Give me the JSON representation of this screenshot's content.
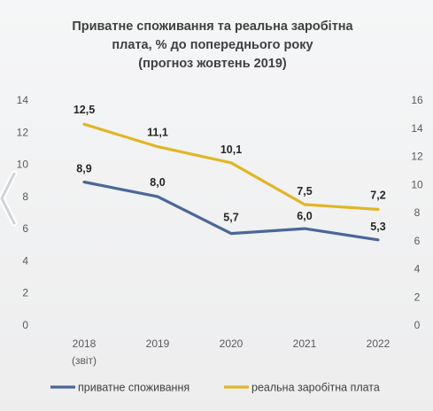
{
  "title_lines": [
    "Приватне споживання та реальна заробітна",
    "плата, % до попереднього року",
    "(прогноз жовтень 2019)"
  ],
  "nav": {
    "icon": "chevron-left-icon"
  },
  "colors": {
    "series1": "#4a6796",
    "series2": "#e0b626",
    "tick": "#595959"
  },
  "chart_data": {
    "type": "line",
    "title": "Приватне споживання та реальна заробітна плата, % до попереднього року (прогноз жовтень 2019)",
    "categories": [
      "2018",
      "2019",
      "2020",
      "2021",
      "2022"
    ],
    "category_sublabels": [
      "(звіт)",
      "",
      "",
      "",
      ""
    ],
    "y_left": {
      "min": 0,
      "max": 14,
      "ticks": [
        0,
        2,
        4,
        6,
        8,
        10,
        12,
        14
      ]
    },
    "y_right": {
      "min": 0,
      "max": 16,
      "ticks": [
        0,
        2,
        4,
        6,
        8,
        10,
        12,
        14,
        16
      ]
    },
    "grid": false,
    "legend_position": "bottom",
    "series": [
      {
        "name": "приватне споживання",
        "axis": "left",
        "color": "#4a6796",
        "values": [
          8.9,
          8.0,
          5.7,
          6.0,
          5.3
        ],
        "labels": [
          "8,9",
          "8,0",
          "5,7",
          "6,0",
          "5,3"
        ]
      },
      {
        "name": "реальна заробітна плата",
        "axis": "left",
        "color": "#e0b626",
        "values": [
          12.5,
          11.1,
          10.1,
          7.5,
          7.2
        ],
        "labels": [
          "12,5",
          "11,1",
          "10,1",
          "7,5",
          "7,2"
        ]
      }
    ]
  }
}
